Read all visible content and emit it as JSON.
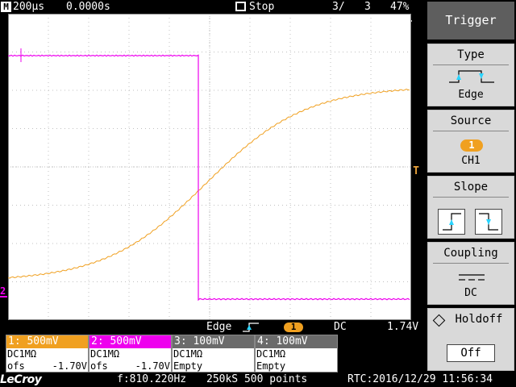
{
  "top_bar": {
    "m_icon": "M",
    "timebase": "200µs",
    "delay": "0.0000s",
    "run_state": "Stop",
    "copy_icon": "stack-icon",
    "acq_count": "3/",
    "acq_total": "3",
    "battery_pct": "47%"
  },
  "menu": {
    "title": "Trigger",
    "type": {
      "label": "Type",
      "value": "Edge"
    },
    "source": {
      "label": "Source",
      "badge": "1",
      "value": "CH1"
    },
    "slope": {
      "label": "Slope"
    },
    "coupling": {
      "label": "Coupling",
      "value": "DC"
    },
    "holdoff": {
      "label": "Holdoff",
      "value": "Off"
    }
  },
  "trigger_info": {
    "type": "Edge",
    "source_badge": "1",
    "coupling": "DC",
    "level": "1.74V"
  },
  "markers": {
    "ch2": "2",
    "trigger_level": "T"
  },
  "channels": [
    {
      "header": "1: 500mV",
      "color": "#f0a020",
      "coupling": "DC1MΩ",
      "ofs_label": "ofs",
      "ofs_value": "-1.70V"
    },
    {
      "header": "2: 500mV",
      "color": "#ee00ee",
      "coupling": "DC1MΩ",
      "ofs_label": "ofs",
      "ofs_value": "-1.70V"
    },
    {
      "header": "3: 100mV",
      "color": "#6b6b6b",
      "coupling": "DC1MΩ",
      "ofs_label": "Empty",
      "ofs_value": ""
    },
    {
      "header": "4: 100mV",
      "color": "#6b6b6b",
      "coupling": "DC1MΩ",
      "ofs_label": "Empty",
      "ofs_value": ""
    }
  ],
  "status_bar": {
    "logo": "LeCroy",
    "frequency": "f:810.220Hz",
    "sample_info": "250kS 500 points",
    "rtc": "RTC:2016/12/29 11:56:34"
  },
  "colors": {
    "ch1": "#f0a020",
    "ch2": "#ee00ee",
    "grid": "#c0c0c0",
    "menu_bg": "#d9d9d9",
    "menu_title_bg": "#5e5e5e"
  }
}
